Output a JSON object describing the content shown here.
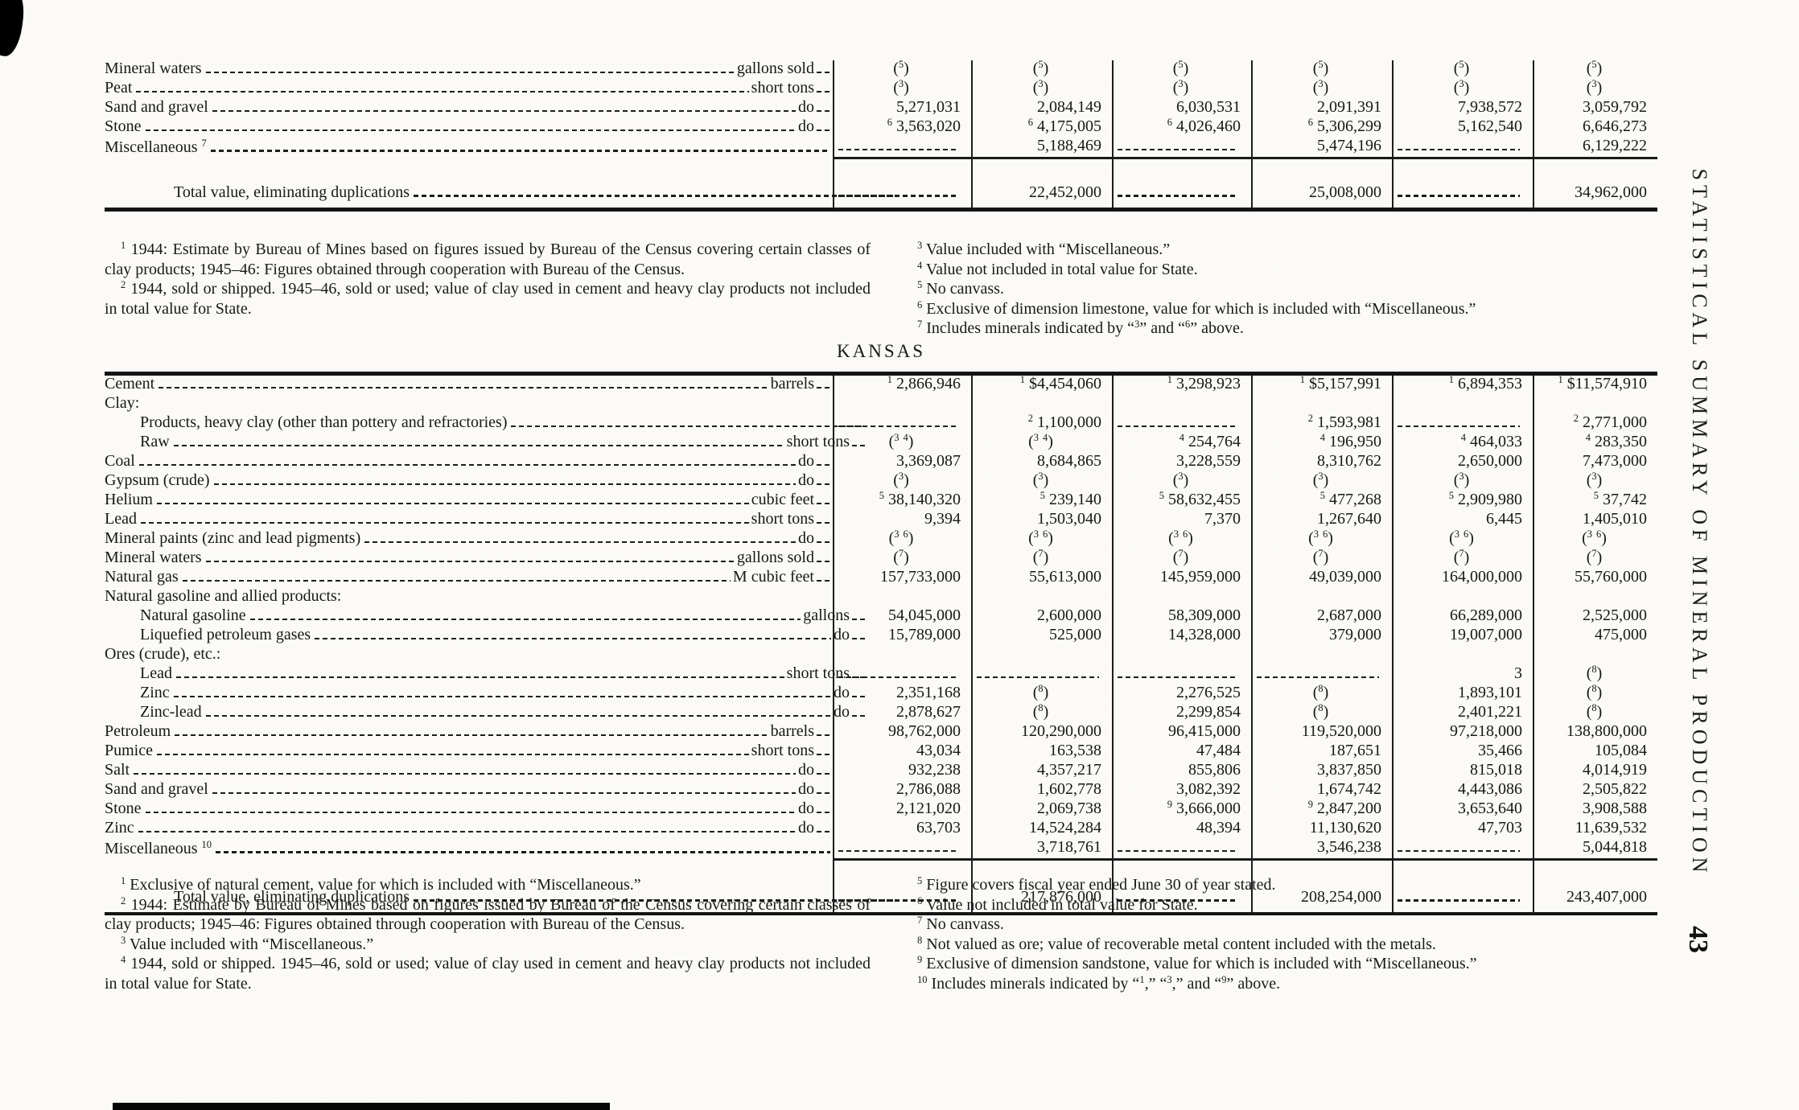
{
  "page": {
    "heading": "KANSAS",
    "side_caption": "STATISTICAL SUMMARY OF MINERAL PRODUCTION",
    "page_number": "43"
  },
  "table_top": {
    "rows": [
      {
        "label": "Mineral waters",
        "unit": "gallons sold",
        "indent": 0,
        "cells": [
          "(^5)",
          "(^5)",
          "(^5)",
          "(^5)",
          "(^5)",
          "(^5)"
        ]
      },
      {
        "label": "Peat",
        "unit": "short tons",
        "indent": 0,
        "cells": [
          "(^3)",
          "(^3)",
          "(^3)",
          "(^3)",
          "(^3)",
          "(^3)"
        ]
      },
      {
        "label": "Sand and gravel",
        "unit": "do",
        "indent": 0,
        "cells": [
          "5,271,031",
          "2,084,149",
          "6,030,531",
          "2,091,391",
          "7,938,572",
          "3,059,792"
        ]
      },
      {
        "label": "Stone",
        "unit": "do",
        "indent": 0,
        "cells": [
          "^6 3,563,020",
          "^6 4,175,005",
          "^6 4,026,460",
          "^6 5,306,299",
          "5,162,540",
          "6,646,273"
        ]
      },
      {
        "label": "Miscellaneous ^7",
        "unit": "",
        "indent": 0,
        "cells": [
          "DASH",
          "5,188,469",
          "DASH",
          "5,474,196",
          "DASH",
          "6,129,222"
        ]
      }
    ],
    "total_row": {
      "label": "Total value, eliminating duplications",
      "cells": [
        "DASH",
        "22,452,000",
        "DASH",
        "25,008,000",
        "DASH",
        "34,962,000"
      ]
    }
  },
  "footnotes_top": {
    "left": [
      "^1 1944: Estimate by Bureau of Mines based on figures issued by Bureau of the Census covering certain classes of clay products; 1945–46: Figures obtained through cooperation with Bureau of the Census.",
      "^2 1944, sold or shipped.  1945–46, sold or used; value of clay used in cement and heavy clay products not included in total value for State."
    ],
    "right": [
      "^3 Value included with “Miscellaneous.”",
      "^4 Value not included in total value for State.",
      "^5 No canvass.",
      "^6 Exclusive of dimension limestone, value for which is included with “Miscellaneous.”",
      "^7 Includes minerals indicated by “^3” and “^6” above."
    ]
  },
  "table_kansas": {
    "rows": [
      {
        "label": "Cement",
        "unit": "barrels",
        "indent": 0,
        "cells": [
          "^1 2,866,946",
          "^1 $4,454,060",
          "^1 3,298,923",
          "^1 $5,157,991",
          "^1 6,894,353",
          "^1 $11,574,910"
        ]
      },
      {
        "label": "Clay:",
        "type": "group",
        "indent": 0
      },
      {
        "label": "Products, heavy clay (other than pottery and refractories)",
        "unit": "",
        "indent": 1,
        "cells": [
          "DASH",
          "^2 1,100,000",
          "DASH",
          "^2 1,593,981",
          "DASH",
          "^2 2,771,000"
        ]
      },
      {
        "label": "Raw",
        "unit": "short tons",
        "indent": 1,
        "cells": [
          "(^3 ^4)",
          "(^3 ^4)",
          "^4 254,764",
          "^4 196,950",
          "^4 464,033",
          "^4 283,350"
        ]
      },
      {
        "label": "Coal",
        "unit": "do",
        "indent": 0,
        "cells": [
          "3,369,087",
          "8,684,865",
          "3,228,559",
          "8,310,762",
          "2,650,000",
          "7,473,000"
        ]
      },
      {
        "label": "Gypsum (crude)",
        "unit": "do",
        "indent": 0,
        "cells": [
          "(^3)",
          "(^3)",
          "(^3)",
          "(^3)",
          "(^3)",
          "(^3)"
        ]
      },
      {
        "label": "Helium",
        "unit": "cubic feet",
        "indent": 0,
        "cells": [
          "^5 38,140,320",
          "^5 239,140",
          "^5 58,632,455",
          "^5 477,268",
          "^5 2,909,980",
          "^5 37,742"
        ]
      },
      {
        "label": "Lead",
        "unit": "short tons",
        "indent": 0,
        "cells": [
          "9,394",
          "1,503,040",
          "7,370",
          "1,267,640",
          "6,445",
          "1,405,010"
        ]
      },
      {
        "label": "Mineral paints (zinc and lead pigments)",
        "unit": "do",
        "indent": 0,
        "cells": [
          "(^3 ^6)",
          "(^3 ^6)",
          "(^3 ^6)",
          "(^3 ^6)",
          "(^3 ^6)",
          "(^3 ^6)"
        ]
      },
      {
        "label": "Mineral waters",
        "unit": "gallons sold",
        "indent": 0,
        "cells": [
          "(^7)",
          "(^7)",
          "(^7)",
          "(^7)",
          "(^7)",
          "(^7)"
        ]
      },
      {
        "label": "Natural gas",
        "unit": "M cubic feet",
        "indent": 0,
        "cells": [
          "157,733,000",
          "55,613,000",
          "145,959,000",
          "49,039,000",
          "164,000,000",
          "55,760,000"
        ]
      },
      {
        "label": "Natural gasoline and allied products:",
        "type": "group",
        "indent": 0
      },
      {
        "label": "Natural gasoline",
        "unit": "gallons",
        "indent": 1,
        "cells": [
          "54,045,000",
          "2,600,000",
          "58,309,000",
          "2,687,000",
          "66,289,000",
          "2,525,000"
        ]
      },
      {
        "label": "Liquefied petroleum gases",
        "unit": "do",
        "indent": 1,
        "cells": [
          "15,789,000",
          "525,000",
          "14,328,000",
          "379,000",
          "19,007,000",
          "475,000"
        ]
      },
      {
        "label": "Ores (crude), etc.:",
        "type": "group",
        "indent": 0
      },
      {
        "label": "Lead",
        "unit": "short tons",
        "indent": 1,
        "cells": [
          "DASH",
          "DASH",
          "DASH",
          "DASH",
          "3",
          "(^8)"
        ]
      },
      {
        "label": "Zinc",
        "unit": "do",
        "indent": 1,
        "cells": [
          "2,351,168",
          "(^8)",
          "2,276,525",
          "(^8)",
          "1,893,101",
          "(^8)"
        ]
      },
      {
        "label": "Zinc-lead",
        "unit": "do",
        "indent": 1,
        "cells": [
          "2,878,627",
          "(^8)",
          "2,299,854",
          "(^8)",
          "2,401,221",
          "(^8)"
        ]
      },
      {
        "label": "Petroleum",
        "unit": "barrels",
        "indent": 0,
        "cells": [
          "98,762,000",
          "120,290,000",
          "96,415,000",
          "119,520,000",
          "97,218,000",
          "138,800,000"
        ]
      },
      {
        "label": "Pumice",
        "unit": "short tons",
        "indent": 0,
        "cells": [
          "43,034",
          "163,538",
          "47,484",
          "187,651",
          "35,466",
          "105,084"
        ]
      },
      {
        "label": "Salt",
        "unit": "do",
        "indent": 0,
        "cells": [
          "932,238",
          "4,357,217",
          "855,806",
          "3,837,850",
          "815,018",
          "4,014,919"
        ]
      },
      {
        "label": "Sand and gravel",
        "unit": "do",
        "indent": 0,
        "cells": [
          "2,786,088",
          "1,602,778",
          "3,082,392",
          "1,674,742",
          "4,443,086",
          "2,505,822"
        ]
      },
      {
        "label": "Stone",
        "unit": "do",
        "indent": 0,
        "cells": [
          "2,121,020",
          "2,069,738",
          "^9 3,666,000",
          "^9 2,847,200",
          "3,653,640",
          "3,908,588"
        ]
      },
      {
        "label": "Zinc",
        "unit": "do",
        "indent": 0,
        "cells": [
          "63,703",
          "14,524,284",
          "48,394",
          "11,130,620",
          "47,703",
          "11,639,532"
        ]
      },
      {
        "label": "Miscellaneous ^10",
        "unit": "",
        "indent": 0,
        "cells": [
          "DASH",
          "3,718,761",
          "DASH",
          "3,546,238",
          "DASH",
          "5,044,818"
        ]
      }
    ],
    "total_row": {
      "label": "Total value, eliminating duplications",
      "cells": [
        "DASH",
        "217,876,000",
        "DASH",
        "208,254,000",
        "DASH",
        "243,407,000"
      ]
    }
  },
  "footnotes_bottom": {
    "left": [
      "^1 Exclusive of natural cement, value for which is included with “Miscellaneous.”",
      "^2 1944: Estimate by Bureau of Mines based on figures issued by Bureau of the Census covering certain classes of clay products; 1945–46: Figures obtained through cooperation with Bureau of the Census.",
      "^3 Value included with “Miscellaneous.”",
      "^4 1944, sold or shipped.  1945–46, sold or used; value of clay used in cement and heavy clay products not included in total value for State."
    ],
    "right": [
      "^5 Figure covers fiscal year ended June 30 of year stated.",
      "^6 Value not included in total value for State.",
      "^7 No canvass.",
      "^8 Not valued as ore; value of recoverable metal content included with the metals.",
      "^9 Exclusive of dimension sandstone, value for which is included with “Miscellaneous.”",
      "^10 Includes minerals indicated by “^1,” “^3,” and “^9” above."
    ]
  }
}
